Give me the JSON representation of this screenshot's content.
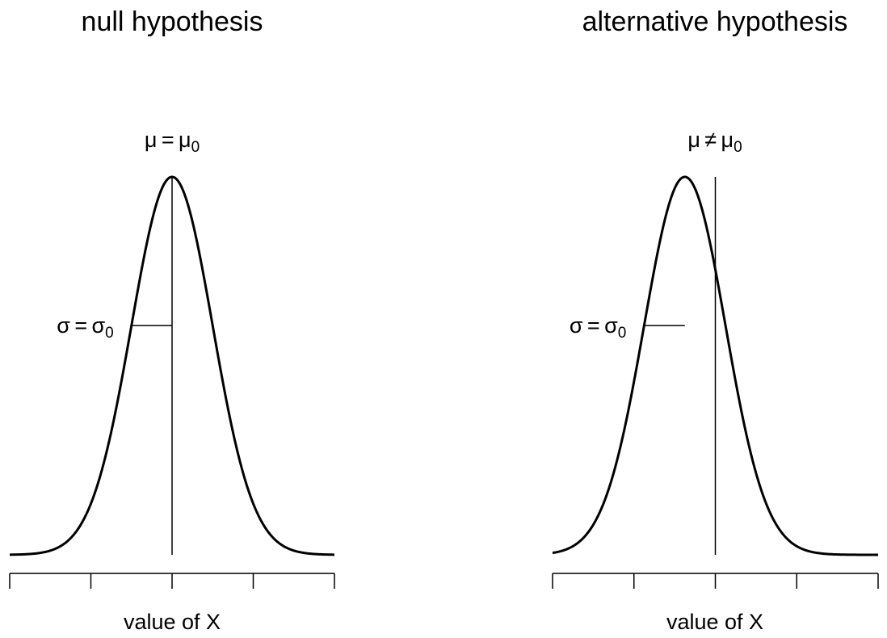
{
  "chart_data": [
    {
      "type": "line",
      "title": "null hypothesis",
      "xlabel": "value of X",
      "mean_label": {
        "symbol": "μ",
        "relation": "=",
        "ref": "μ",
        "sub": "0"
      },
      "sd_label": {
        "symbol": "σ",
        "relation": "=",
        "ref": "σ",
        "sub": "0"
      },
      "xlim": [
        -2,
        2
      ],
      "xticks": [
        -2,
        -1,
        0,
        1,
        2
      ],
      "curve": {
        "distribution": "normal",
        "mean": 0,
        "sd": 0.5
      },
      "reference_line_x": 0
    },
    {
      "type": "line",
      "title": "alternative hypothesis",
      "xlabel": "value of X",
      "mean_label": {
        "symbol": "μ",
        "relation": "≠",
        "ref": "μ",
        "sub": "0"
      },
      "sd_label": {
        "symbol": "σ",
        "relation": "=",
        "ref": "σ",
        "sub": "0"
      },
      "xlim": [
        -2,
        2
      ],
      "xticks": [
        -2,
        -1,
        0,
        1,
        2
      ],
      "curve": {
        "distribution": "normal",
        "mean": -0.375,
        "sd": 0.5
      },
      "reference_line_x": 0
    }
  ]
}
